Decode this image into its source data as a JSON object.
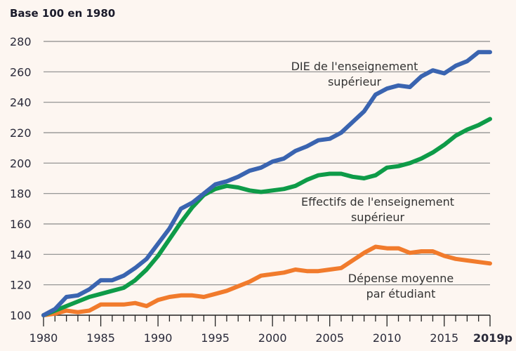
{
  "chart_data": {
    "type": "line",
    "title": "",
    "ylabel": "Base 100 en 1980",
    "xlabel": "",
    "ylim": [
      100,
      280
    ],
    "xlim": [
      1980,
      2019
    ],
    "yticks": [
      100,
      120,
      140,
      160,
      180,
      200,
      220,
      240,
      260,
      280
    ],
    "xticks": [
      1980,
      1985,
      1990,
      1995,
      2000,
      2005,
      2010,
      2015,
      2019
    ],
    "xtick_labels": [
      "1980",
      "1985",
      "1990",
      "1995",
      "2000",
      "2005",
      "2010",
      "2015",
      "2019p"
    ],
    "grid": true,
    "x": [
      1980,
      1981,
      1982,
      1983,
      1984,
      1985,
      1986,
      1987,
      1988,
      1989,
      1990,
      1991,
      1992,
      1993,
      1994,
      1995,
      1996,
      1997,
      1998,
      1999,
      2000,
      2001,
      2002,
      2003,
      2004,
      2005,
      2006,
      2007,
      2008,
      2009,
      2010,
      2011,
      2012,
      2013,
      2014,
      2015,
      2016,
      2017,
      2018,
      2019
    ],
    "series": [
      {
        "name": "DIE de l'enseignement supérieur",
        "label_lines": [
          "DIE de l'enseignement",
          "supérieur"
        ],
        "color": "#3a64b0",
        "values": [
          100,
          104,
          112,
          113,
          117,
          123,
          123,
          126,
          131,
          137,
          147,
          157,
          170,
          174,
          180,
          186,
          188,
          191,
          195,
          197,
          201,
          203,
          208,
          211,
          215,
          216,
          220,
          227,
          234,
          245,
          249,
          251,
          250,
          257,
          261,
          259,
          264,
          267,
          273,
          273
        ]
      },
      {
        "name": "Effectifs de l'enseignement supérieur",
        "label_lines": [
          "Effectifs de l'enseignement",
          "supérieur"
        ],
        "color": "#0e9b48",
        "values": [
          100,
          103,
          106,
          109,
          112,
          114,
          116,
          118,
          123,
          130,
          139,
          150,
          161,
          171,
          179,
          183,
          185,
          184,
          182,
          181,
          182,
          183,
          185,
          189,
          192,
          193,
          193,
          191,
          190,
          192,
          197,
          198,
          200,
          203,
          207,
          212,
          218,
          222,
          225,
          229
        ]
      },
      {
        "name": "Dépense moyenne par étudiant",
        "label_lines": [
          "Dépense moyenne",
          "par étudiant"
        ],
        "color": "#f17b2c",
        "values": [
          100,
          101,
          103,
          102,
          103,
          107,
          107,
          107,
          108,
          106,
          110,
          112,
          113,
          113,
          112,
          114,
          116,
          119,
          122,
          126,
          127,
          128,
          130,
          129,
          129,
          130,
          131,
          136,
          141,
          145,
          144,
          144,
          141,
          142,
          142,
          139,
          137,
          136,
          135,
          134
        ]
      }
    ]
  }
}
